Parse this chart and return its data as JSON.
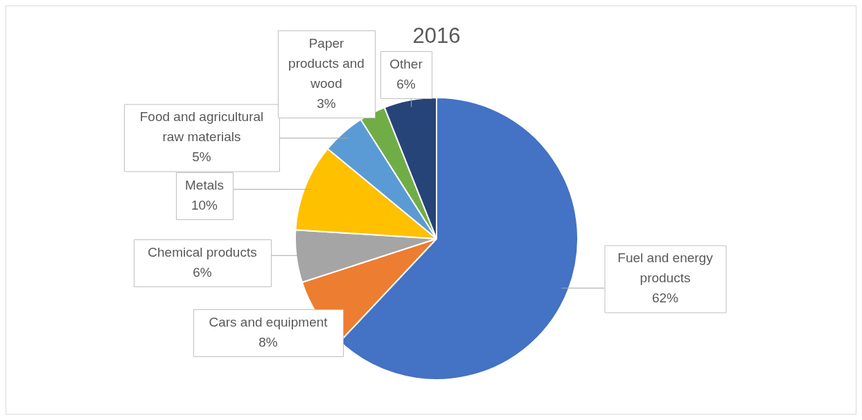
{
  "chart_data": {
    "type": "pie",
    "title": "2016",
    "categories": [
      "Fuel and energy products",
      "Cars and equipment",
      "Chemical products",
      "Metals",
      "Food and agricultural raw materials",
      "Paper products and wood",
      "Other"
    ],
    "values": [
      62,
      8,
      6,
      10,
      5,
      3,
      6
    ],
    "colors": [
      "#4472c4",
      "#ed7d31",
      "#a5a5a5",
      "#ffc000",
      "#5b9bd5",
      "#70ad47",
      "#264478"
    ],
    "value_labels": [
      "62%",
      "8%",
      "6%",
      "10%",
      "5%",
      "3%",
      "6%"
    ],
    "legend": false
  }
}
